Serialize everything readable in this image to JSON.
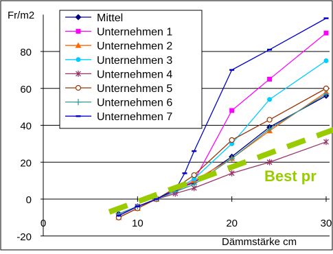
{
  "chart_data": {
    "type": "line",
    "ylabel": "Fr/m2",
    "xlabel": "Dämmstärke cm",
    "xlim": [
      0,
      30
    ],
    "ylim": [
      -20,
      100
    ],
    "xticks": [
      0,
      10,
      20,
      30
    ],
    "yticks": [
      -20,
      0,
      20,
      40,
      60,
      80
    ],
    "grid": "horizontal",
    "legend_position": "top-left",
    "annotation": "Best pr",
    "series": [
      {
        "name": "Mittel",
        "color": "#000080",
        "marker": "diamond",
        "x": [
          8,
          10,
          12,
          14,
          16,
          20,
          24,
          30
        ],
        "y": [
          -8,
          -4,
          0,
          5,
          9,
          23,
          39,
          56
        ]
      },
      {
        "name": "Unternehmen 1",
        "color": "#ff00ff",
        "marker": "square",
        "x": [
          8,
          10,
          12,
          14,
          16,
          20,
          24,
          30
        ],
        "y": [
          -9,
          -4,
          0,
          4,
          10,
          48,
          65,
          90
        ]
      },
      {
        "name": "Unternehmen 2",
        "color": "#ff6600",
        "marker": "triangle",
        "x": [
          8,
          10,
          12,
          14,
          16,
          20,
          24,
          30
        ],
        "y": [
          -10,
          -5,
          0,
          5,
          10,
          22,
          37,
          58
        ]
      },
      {
        "name": "Unternehmen 3",
        "color": "#00ccff",
        "marker": "circle",
        "x": [
          8,
          10,
          12,
          14,
          16,
          20,
          24,
          30
        ],
        "y": [
          -9,
          -4,
          0,
          5,
          11,
          30,
          54,
          75
        ]
      },
      {
        "name": "Unternehmen 4",
        "color": "#993366",
        "marker": "star",
        "x": [
          8,
          10,
          12,
          14,
          16,
          20,
          24,
          30
        ],
        "y": [
          -9,
          -4,
          0,
          3,
          6,
          14,
          20,
          31
        ]
      },
      {
        "name": "Unternehmen 5",
        "color": "#993300",
        "marker": "open-circle",
        "x": [
          8,
          10,
          12,
          14,
          16,
          20,
          24,
          30
        ],
        "y": [
          -10,
          -5,
          0,
          6,
          13,
          32,
          43,
          60
        ]
      },
      {
        "name": "Unternehmen 6",
        "color": "#339999",
        "marker": "plus",
        "x": [
          8,
          10,
          12,
          14,
          16,
          20,
          24,
          30
        ],
        "y": [
          -8,
          -4,
          0,
          4,
          8,
          22,
          38,
          57
        ]
      },
      {
        "name": "Unternehmen 7",
        "color": "#0000cc",
        "marker": "dash",
        "x": [
          8,
          10,
          12,
          14,
          15,
          16,
          20,
          24,
          30
        ],
        "y": [
          -9,
          -4,
          0,
          5,
          14,
          26,
          70,
          81,
          98
        ]
      }
    ],
    "best_practice_line": {
      "color": "#99cc00",
      "x": [
        7,
        31
      ],
      "y": [
        -7,
        38
      ]
    }
  }
}
